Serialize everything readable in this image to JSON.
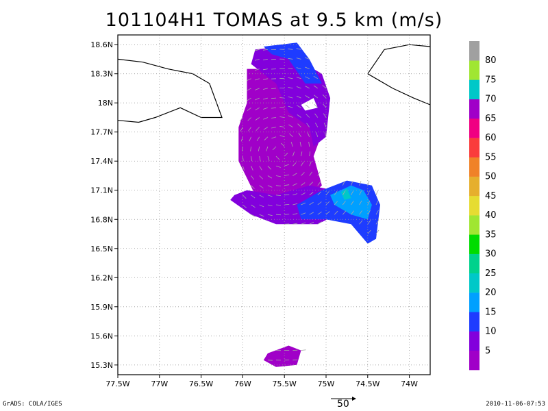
{
  "chart_data": {
    "type": "heatmap",
    "title": "101104H1 TOMAS at 9.5 km (m/s)",
    "x_ticks": [
      "77.5W",
      "77W",
      "76.5W",
      "76W",
      "75.5W",
      "75W",
      "74.5W",
      "74W"
    ],
    "x_tick_values": [
      -77.5,
      -77,
      -76.5,
      -76,
      -75.5,
      -75,
      -74.5,
      -74
    ],
    "y_ticks": [
      "15.3N",
      "15.6N",
      "15.9N",
      "16.2N",
      "16.5N",
      "16.8N",
      "17.1N",
      "17.4N",
      "17.7N",
      "18N",
      "18.3N",
      "18.6N"
    ],
    "y_tick_values": [
      15.3,
      15.6,
      15.9,
      16.2,
      16.5,
      16.8,
      17.1,
      17.4,
      17.7,
      18.0,
      18.3,
      18.6
    ],
    "xlim": [
      -77.5,
      -73.75
    ],
    "ylim": [
      15.2,
      18.7
    ],
    "grid": true,
    "colorbar": {
      "labels": [
        "5",
        "10",
        "15",
        "20",
        "25",
        "30",
        "35",
        "40",
        "45",
        "50",
        "55",
        "60",
        "65",
        "70",
        "75",
        "80"
      ],
      "colors": [
        "#a000c8",
        "#8200dc",
        "#1e3cff",
        "#00a0ff",
        "#00c8c8",
        "#00d28c",
        "#00dc00",
        "#a0e632",
        "#e6dc32",
        "#e6af2d",
        "#f08228",
        "#fa3c3c",
        "#f00082",
        "#a000c8",
        "#00c8c8",
        "#a0e632",
        "#a0a0a0"
      ]
    },
    "wind_regions": [
      {
        "name": "main-core",
        "speed_class": "5",
        "polygon": [
          [
            -75.95,
            18.35
          ],
          [
            -75.3,
            18.35
          ],
          [
            -75.1,
            18.2
          ],
          [
            -75.0,
            17.8
          ],
          [
            -75.15,
            17.45
          ],
          [
            -75.05,
            17.15
          ],
          [
            -75.3,
            16.95
          ],
          [
            -75.6,
            16.95
          ],
          [
            -75.85,
            17.05
          ],
          [
            -76.05,
            17.4
          ],
          [
            -76.05,
            17.75
          ],
          [
            -75.95,
            18.0
          ]
        ]
      },
      {
        "name": "upper-band",
        "speed_class": "10",
        "polygon": [
          [
            -75.85,
            18.55
          ],
          [
            -75.35,
            18.6
          ],
          [
            -75.25,
            18.4
          ],
          [
            -75.05,
            18.3
          ],
          [
            -74.95,
            18.05
          ],
          [
            -75.0,
            17.65
          ],
          [
            -75.15,
            17.55
          ],
          [
            -75.2,
            17.75
          ],
          [
            -75.45,
            17.9
          ],
          [
            -75.6,
            18.2
          ],
          [
            -75.9,
            18.4
          ]
        ]
      },
      {
        "name": "lower-band",
        "speed_class": "10",
        "polygon": [
          [
            -76.15,
            17.0
          ],
          [
            -75.9,
            16.85
          ],
          [
            -75.6,
            16.75
          ],
          [
            -75.1,
            16.75
          ],
          [
            -74.75,
            16.9
          ],
          [
            -74.9,
            17.1
          ],
          [
            -75.2,
            17.15
          ],
          [
            -75.6,
            17.05
          ],
          [
            -75.95,
            17.1
          ],
          [
            -76.1,
            17.05
          ]
        ]
      },
      {
        "name": "east-blue",
        "speed_class": "15",
        "polygon": [
          [
            -75.05,
            17.1
          ],
          [
            -74.75,
            17.2
          ],
          [
            -74.45,
            17.15
          ],
          [
            -74.35,
            16.95
          ],
          [
            -74.4,
            16.6
          ],
          [
            -74.5,
            16.55
          ],
          [
            -74.7,
            16.75
          ],
          [
            -75.0,
            16.8
          ],
          [
            -75.3,
            16.8
          ],
          [
            -75.35,
            16.95
          ]
        ]
      },
      {
        "name": "east-cyan",
        "speed_class": "20",
        "polygon": [
          [
            -74.95,
            17.05
          ],
          [
            -74.7,
            17.15
          ],
          [
            -74.55,
            17.1
          ],
          [
            -74.45,
            16.95
          ],
          [
            -74.5,
            16.8
          ],
          [
            -74.7,
            16.85
          ],
          [
            -74.9,
            16.95
          ]
        ]
      },
      {
        "name": "east-teal",
        "speed_class": "25",
        "polygon": [
          [
            -74.82,
            17.08
          ],
          [
            -74.75,
            17.12
          ],
          [
            -74.7,
            17.02
          ],
          [
            -74.78,
            17.0
          ]
        ]
      },
      {
        "name": "north-blue",
        "speed_class": "15",
        "polygon": [
          [
            -75.75,
            18.58
          ],
          [
            -75.35,
            18.62
          ],
          [
            -75.2,
            18.45
          ],
          [
            -75.05,
            18.2
          ],
          [
            -75.25,
            18.2
          ],
          [
            -75.45,
            18.45
          ],
          [
            -75.65,
            18.5
          ]
        ]
      },
      {
        "name": "south-island",
        "speed_class": "5",
        "polygon": [
          [
            -75.7,
            15.42
          ],
          [
            -75.45,
            15.5
          ],
          [
            -75.3,
            15.45
          ],
          [
            -75.35,
            15.3
          ],
          [
            -75.6,
            15.28
          ],
          [
            -75.75,
            15.35
          ]
        ]
      }
    ],
    "coastlines": [
      [
        [
          -77.5,
          18.45
        ],
        [
          -77.2,
          18.42
        ],
        [
          -76.9,
          18.35
        ],
        [
          -76.6,
          18.3
        ],
        [
          -76.4,
          18.2
        ],
        [
          -76.25,
          17.85
        ],
        [
          -76.5,
          17.85
        ],
        [
          -76.75,
          17.95
        ],
        [
          -77.05,
          17.85
        ],
        [
          -77.25,
          17.8
        ],
        [
          -77.5,
          17.82
        ]
      ],
      [
        [
          -74.5,
          18.3
        ],
        [
          -74.3,
          18.55
        ],
        [
          -74.0,
          18.6
        ],
        [
          -73.75,
          18.58
        ]
      ],
      [
        [
          -74.5,
          18.3
        ],
        [
          -74.2,
          18.15
        ],
        [
          -73.95,
          18.05
        ],
        [
          -73.75,
          17.98
        ]
      ]
    ],
    "reference_vector": {
      "label": "50"
    }
  },
  "footer": {
    "left": "GrADS: COLA/IGES",
    "right": "2010-11-06-07:53"
  }
}
